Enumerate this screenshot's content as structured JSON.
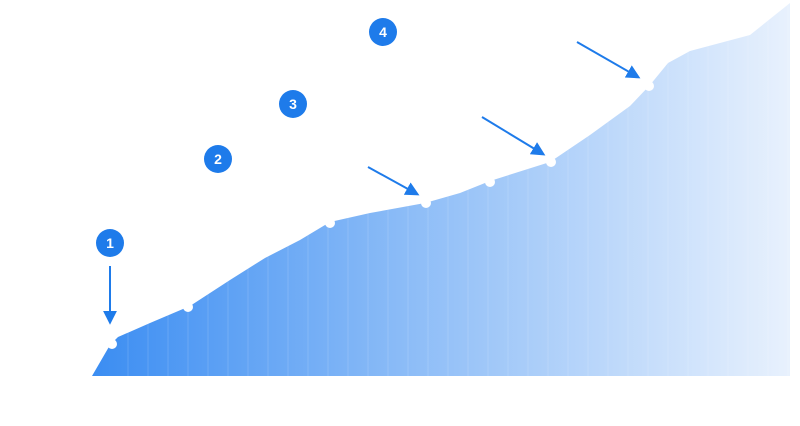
{
  "steps": [
    {
      "label": "1"
    },
    {
      "label": "2"
    },
    {
      "label": "3"
    },
    {
      "label": "4"
    }
  ],
  "colors": {
    "accent": "#1e7bea",
    "area_start": "#3d8ff2",
    "area_end": "#e6f0fd",
    "marker": "#ffffff"
  }
}
